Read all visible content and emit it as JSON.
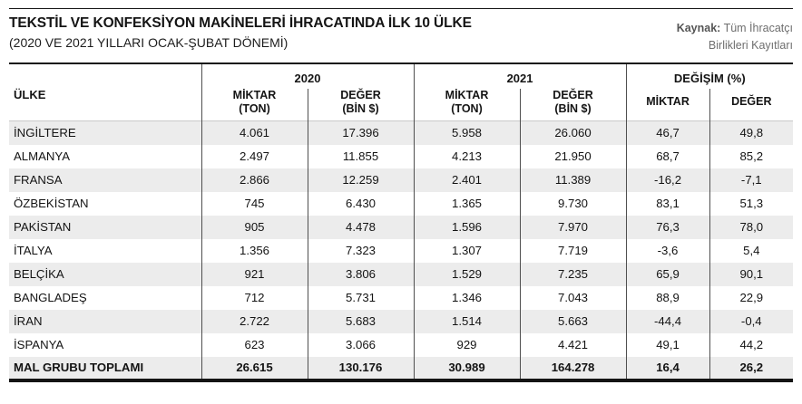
{
  "page": {
    "title": "TEKSTİL VE KONFEKSİYON MAKİNELERİ İHRACATINDA İLK 10 ÜLKE",
    "subtitle": "(2020 VE 2021 YILLARI OCAK-ŞUBAT DÖNEMİ)",
    "source": {
      "label": "Kaynak:",
      "line1": "Tüm İhracatçı",
      "line2": "Birlikleri Kayıtları"
    }
  },
  "table": {
    "country_header": "ÜLKE",
    "groups": {
      "y2020": "2020",
      "y2021": "2021",
      "change": "DEĞİŞİM (%)"
    },
    "subheaders": {
      "miktar_l1": "MİKTAR",
      "miktar_l2": "(TON)",
      "deger_l1": "DEĞER",
      "deger_l2": "(BİN $)",
      "chg_miktar": "MİKTAR",
      "chg_deger": "DEĞER"
    },
    "rows": [
      {
        "country": "İNGİLTERE",
        "m2020": "4.061",
        "d2020": "17.396",
        "m2021": "5.958",
        "d2021": "26.060",
        "cm": "46,7",
        "cd": "49,8"
      },
      {
        "country": "ALMANYA",
        "m2020": "2.497",
        "d2020": "11.855",
        "m2021": "4.213",
        "d2021": "21.950",
        "cm": "68,7",
        "cd": "85,2"
      },
      {
        "country": "FRANSA",
        "m2020": "2.866",
        "d2020": "12.259",
        "m2021": "2.401",
        "d2021": "11.389",
        "cm": "-16,2",
        "cd": "-7,1"
      },
      {
        "country": "ÖZBEKİSTAN",
        "m2020": "745",
        "d2020": "6.430",
        "m2021": "1.365",
        "d2021": "9.730",
        "cm": "83,1",
        "cd": "51,3"
      },
      {
        "country": "PAKİSTAN",
        "m2020": "905",
        "d2020": "4.478",
        "m2021": "1.596",
        "d2021": "7.970",
        "cm": "76,3",
        "cd": "78,0"
      },
      {
        "country": "İTALYA",
        "m2020": "1.356",
        "d2020": "7.323",
        "m2021": "1.307",
        "d2021": "7.719",
        "cm": "-3,6",
        "cd": "5,4"
      },
      {
        "country": "BELÇİKA",
        "m2020": "921",
        "d2020": "3.806",
        "m2021": "1.529",
        "d2021": "7.235",
        "cm": "65,9",
        "cd": "90,1"
      },
      {
        "country": "BANGLADEŞ",
        "m2020": "712",
        "d2020": "5.731",
        "m2021": "1.346",
        "d2021": "7.043",
        "cm": "88,9",
        "cd": "22,9"
      },
      {
        "country": "İRAN",
        "m2020": "2.722",
        "d2020": "5.683",
        "m2021": "1.514",
        "d2021": "5.663",
        "cm": "-44,4",
        "cd": "-0,4"
      },
      {
        "country": "İSPANYA",
        "m2020": "623",
        "d2020": "3.066",
        "m2021": "929",
        "d2021": "4.421",
        "cm": "49,1",
        "cd": "44,2"
      }
    ],
    "total": {
      "country": "MAL GRUBU TOPLAMI",
      "m2020": "26.615",
      "d2020": "130.176",
      "m2021": "30.989",
      "d2021": "164.278",
      "cm": "16,4",
      "cd": "26,2"
    }
  },
  "colors": {
    "stripe_row": "#ececec",
    "grid_line": "#4f4f4f",
    "rule_black": "#141414",
    "source_text": "#6e6e6e"
  },
  "chart_data": {
    "type": "table",
    "title": "TEKSTİL VE KONFEKSİYON MAKİNELERİ İHRACATINDA İLK 10 ÜLKE",
    "subtitle": "(2020 VE 2021 YILLARI OCAK-ŞUBAT DÖNEMİ)",
    "source": "Kaynak: Tüm İhracatçı Birlikleri Kayıtları",
    "column_groups": [
      "ÜLKE",
      "2020",
      "2021",
      "DEĞİŞİM (%)"
    ],
    "columns": [
      "ÜLKE",
      "2020 MİKTAR (TON)",
      "2020 DEĞER (BİN $)",
      "2021 MİKTAR (TON)",
      "2021 DEĞER (BİN $)",
      "DEĞİŞİM MİKTAR (%)",
      "DEĞİŞİM DEĞER (%)"
    ],
    "rows": [
      [
        "İNGİLTERE",
        4061,
        17396,
        5958,
        26060,
        46.7,
        49.8
      ],
      [
        "ALMANYA",
        2497,
        11855,
        4213,
        21950,
        68.7,
        85.2
      ],
      [
        "FRANSA",
        2866,
        12259,
        2401,
        11389,
        -16.2,
        -7.1
      ],
      [
        "ÖZBEKİSTAN",
        745,
        6430,
        1365,
        9730,
        83.1,
        51.3
      ],
      [
        "PAKİSTAN",
        905,
        4478,
        1596,
        7970,
        76.3,
        78.0
      ],
      [
        "İTALYA",
        1356,
        7323,
        1307,
        7719,
        -3.6,
        5.4
      ],
      [
        "BELÇİKA",
        921,
        3806,
        1529,
        7235,
        65.9,
        90.1
      ],
      [
        "BANGLADEŞ",
        712,
        5731,
        1346,
        7043,
        88.9,
        22.9
      ],
      [
        "İRAN",
        2722,
        5683,
        1514,
        5663,
        -44.4,
        -0.4
      ],
      [
        "İSPANYA",
        623,
        3066,
        929,
        4421,
        49.1,
        44.2
      ],
      [
        "MAL GRUBU TOPLAMI",
        26615,
        130176,
        30989,
        164278,
        16.4,
        26.2
      ]
    ]
  }
}
